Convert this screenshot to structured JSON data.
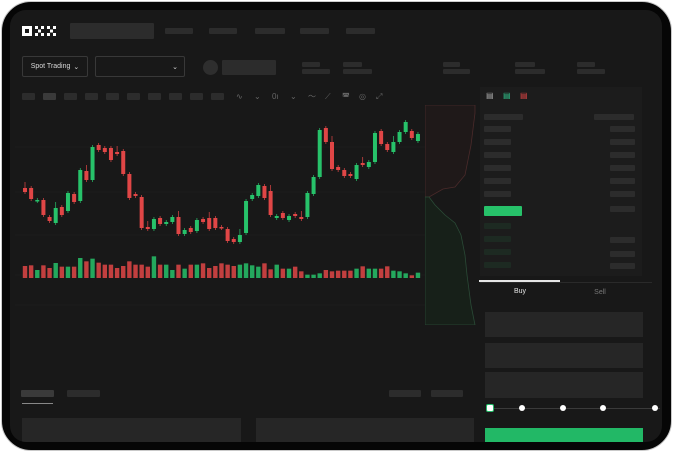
{
  "brand": {
    "logo": "OKX"
  },
  "toolbar": {
    "mode_label": "Spot Trading",
    "dropdown_chevron": "chevron-down-icon"
  },
  "trade": {
    "buy_label": "Buy",
    "sell_label": "Sell",
    "slider_value_percent": 0,
    "slider_stops": [
      0,
      25,
      50,
      75,
      100
    ]
  },
  "colors": {
    "up": "#27c26a",
    "down": "#e04646",
    "background": "#181818",
    "accent": "#22b866"
  },
  "chart_data": {
    "type": "candlestick",
    "title": "",
    "xlabel": "",
    "ylabel": "",
    "ylim": [
      20,
      180
    ],
    "grid": true,
    "candles": [
      [
        97,
        93
      ],
      [
        97,
        86
      ],
      [
        84,
        85
      ],
      [
        85,
        70
      ],
      [
        68,
        64
      ],
      [
        62,
        77
      ],
      [
        78,
        70
      ],
      [
        74,
        92
      ],
      [
        91,
        83
      ],
      [
        84,
        115
      ],
      [
        114,
        105
      ],
      [
        105,
        138
      ],
      [
        140,
        135
      ],
      [
        137,
        133
      ],
      [
        137,
        125
      ],
      [
        133,
        131
      ],
      [
        134,
        111
      ],
      [
        111,
        87
      ],
      [
        91,
        89
      ],
      [
        88,
        57
      ],
      [
        58,
        56
      ],
      [
        56,
        66
      ],
      [
        67,
        61
      ],
      [
        61,
        63
      ],
      [
        63,
        68
      ],
      [
        68,
        51
      ],
      [
        51,
        55
      ],
      [
        57,
        53
      ],
      [
        54,
        65
      ],
      [
        66,
        63
      ],
      [
        67,
        56
      ],
      [
        67,
        57
      ],
      [
        58,
        57
      ],
      [
        56,
        44
      ],
      [
        46,
        43
      ],
      [
        43,
        50
      ],
      [
        52,
        84
      ],
      [
        86,
        90
      ],
      [
        89,
        100
      ],
      [
        99,
        87
      ],
      [
        94,
        70
      ],
      [
        67,
        69
      ],
      [
        72,
        67
      ],
      [
        65,
        69
      ],
      [
        71,
        69
      ],
      [
        68,
        66
      ],
      [
        68,
        92
      ],
      [
        91,
        108
      ],
      [
        108,
        155
      ],
      [
        157,
        143
      ],
      [
        143,
        116
      ],
      [
        118,
        115
      ],
      [
        115,
        109
      ],
      [
        111,
        109
      ],
      [
        106,
        120
      ],
      [
        122,
        120
      ],
      [
        118,
        123
      ],
      [
        123,
        152
      ],
      [
        154,
        141
      ],
      [
        141,
        135
      ],
      [
        133,
        143
      ],
      [
        143,
        153
      ],
      [
        153,
        163
      ],
      [
        154,
        147
      ],
      [
        144,
        151
      ]
    ],
    "volumes": [
      36,
      38,
      24,
      38,
      30,
      45,
      34,
      34,
      34,
      60,
      50,
      58,
      46,
      40,
      40,
      30,
      36,
      50,
      40,
      40,
      34,
      65,
      40,
      40,
      24,
      40,
      28,
      40,
      40,
      44,
      30,
      36,
      44,
      40,
      36,
      40,
      44,
      38,
      34,
      44,
      26,
      40,
      28,
      28,
      34,
      20,
      10,
      10,
      14,
      24,
      20,
      22,
      22,
      22,
      28,
      35,
      28,
      28,
      28,
      35,
      22,
      20,
      14,
      8,
      16
    ]
  }
}
